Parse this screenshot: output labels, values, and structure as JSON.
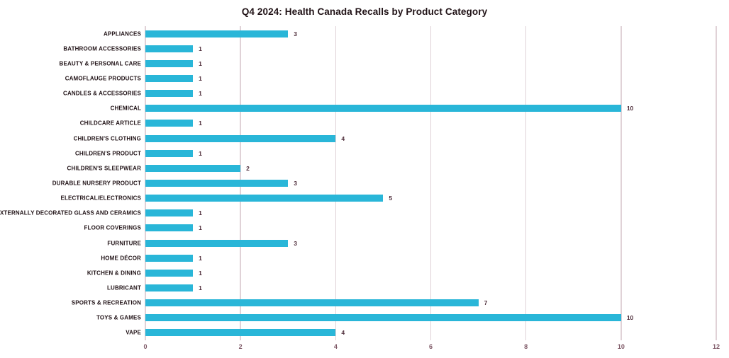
{
  "chart_data": {
    "type": "bar",
    "orientation": "horizontal",
    "title": "Q4 2024: Health Canada Recalls by Product Category",
    "categories": [
      "APPLIANCES",
      "BATHROOM ACCESSORIES",
      "BEAUTY & PERSONAL CARE",
      "CAMOFLAUGE PRODUCTS",
      "CANDLES & ACCESSORIES",
      "CHEMICAL",
      "CHILDCARE ARTICLE",
      "CHILDREN'S CLOTHING",
      "CHILDREN'S PRODUCT",
      "CHILDREN'S SLEEPWEAR",
      "DURABLE NURSERY PRODUCT",
      "ELECTRICAL/ELECTRONICS",
      "EXTERNALLY DECORATED GLASS AND CERAMICS",
      "FLOOR COVERINGS",
      "FURNITURE",
      "HOME DÉCOR",
      "KITCHEN & DINING",
      "LUBRICANT",
      "SPORTS & RECREATION",
      "TOYS & GAMES",
      "VAPE"
    ],
    "values": [
      3,
      1,
      1,
      1,
      1,
      10,
      1,
      4,
      1,
      2,
      3,
      5,
      1,
      1,
      3,
      1,
      1,
      1,
      7,
      10,
      4
    ],
    "data_labels": [
      "3",
      "1",
      "1",
      "1",
      "1",
      "10",
      "1",
      "4",
      "1",
      "2",
      "3",
      "5",
      "1",
      "1",
      "3",
      "1",
      "1",
      "1",
      "7",
      "10",
      "4"
    ],
    "x_ticks": [
      "0",
      "2",
      "4",
      "6",
      "8",
      "10",
      "12"
    ],
    "x_tick_values": [
      0,
      2,
      4,
      6,
      8,
      10,
      12
    ],
    "xlim": [
      0,
      12
    ],
    "xlabel": "",
    "ylabel": "",
    "grid": "vertical",
    "legend": "none",
    "colors": {
      "bar": "#29b6d8",
      "gridline": "#e0d2d7",
      "title": "#201216",
      "category_label": "#201216",
      "value_label": "#4e2d3a",
      "tick_label": "#7d5765"
    }
  }
}
